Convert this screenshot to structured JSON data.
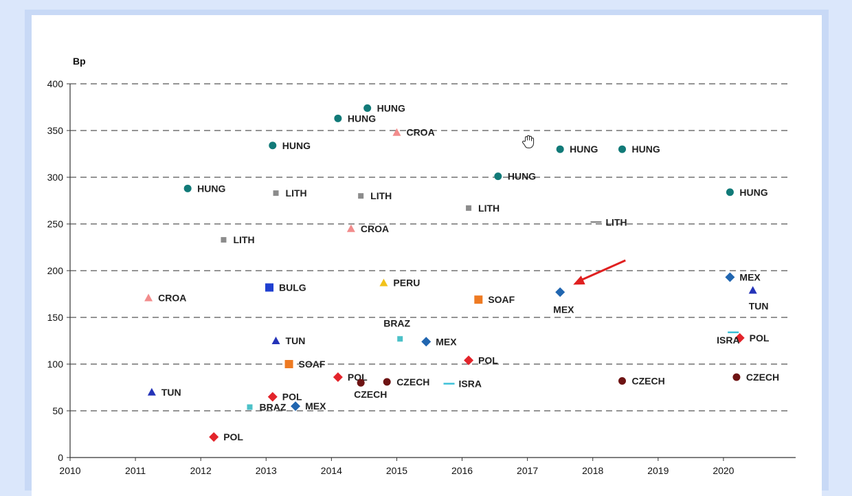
{
  "chart_data": {
    "type": "scatter",
    "ylabel": "Bp",
    "xlim": [
      2010,
      2021
    ],
    "ylim": [
      0,
      400
    ],
    "x_ticks": [
      "2010",
      "2011",
      "2012",
      "2013",
      "2014",
      "2015",
      "2016",
      "2017",
      "2018",
      "2019",
      "2020"
    ],
    "y_ticks": [
      "0",
      "50",
      "100",
      "150",
      "200",
      "250",
      "300",
      "350",
      "400"
    ],
    "grid": "horizontal-dashed",
    "colors": {
      "HUNG": "#117a78",
      "CROA": "#f28c8c",
      "LITH": "#8c8c8c",
      "BULG": "#1f3fd0",
      "PERU": "#f2c21a",
      "SOAF": "#ee7a22",
      "MEX": "#2166b0",
      "TUN": "#2433b8",
      "BRAZ": "#4cc1c8",
      "POL": "#e3242b",
      "CZECH": "#6e1414",
      "ISRA": "#3cc0d8",
      "arrow": "#e02020"
    },
    "points": [
      {
        "label": "HUNG",
        "marker": "circle",
        "x": 2011.8,
        "y": 288
      },
      {
        "label": "HUNG",
        "marker": "circle",
        "x": 2013.1,
        "y": 334
      },
      {
        "label": "HUNG",
        "marker": "circle",
        "x": 2014.1,
        "y": 363
      },
      {
        "label": "HUNG",
        "marker": "circle",
        "x": 2014.55,
        "y": 374
      },
      {
        "label": "HUNG",
        "marker": "circle",
        "x": 2016.55,
        "y": 301
      },
      {
        "label": "HUNG",
        "marker": "circle",
        "x": 2017.5,
        "y": 330
      },
      {
        "label": "HUNG",
        "marker": "circle",
        "x": 2018.45,
        "y": 330
      },
      {
        "label": "HUNG",
        "marker": "circle",
        "x": 2020.1,
        "y": 284
      },
      {
        "label": "CROA",
        "marker": "triangle",
        "x": 2011.2,
        "y": 171
      },
      {
        "label": "CROA",
        "marker": "triangle",
        "x": 2014.3,
        "y": 245
      },
      {
        "label": "CROA",
        "marker": "triangle",
        "x": 2015.0,
        "y": 348
      },
      {
        "label": "LITH",
        "marker": "square-small",
        "x": 2012.35,
        "y": 233
      },
      {
        "label": "LITH",
        "marker": "square-small",
        "x": 2013.15,
        "y": 283
      },
      {
        "label": "LITH",
        "marker": "square-small",
        "x": 2014.45,
        "y": 280
      },
      {
        "label": "LITH",
        "marker": "square-small",
        "x": 2016.1,
        "y": 267
      },
      {
        "label": "LITH",
        "marker": "dash",
        "x": 2018.05,
        "y": 252
      },
      {
        "label": "BULG",
        "marker": "square",
        "x": 2013.05,
        "y": 182
      },
      {
        "label": "PERU",
        "marker": "triangle",
        "x": 2014.8,
        "y": 187
      },
      {
        "label": "SOAF",
        "marker": "square",
        "x": 2016.25,
        "y": 169
      },
      {
        "label": "SOAF",
        "marker": "square",
        "x": 2013.35,
        "y": 100
      },
      {
        "label": "MEX",
        "marker": "diamond",
        "x": 2017.5,
        "y": 177
      },
      {
        "label": "MEX",
        "marker": "diamond",
        "x": 2020.1,
        "y": 193
      },
      {
        "label": "MEX",
        "marker": "diamond",
        "x": 2015.45,
        "y": 124
      },
      {
        "label": "MEX",
        "marker": "diamond",
        "x": 2013.45,
        "y": 55
      },
      {
        "label": "TUN",
        "marker": "triangle",
        "x": 2011.25,
        "y": 70
      },
      {
        "label": "TUN",
        "marker": "triangle",
        "x": 2013.15,
        "y": 125
      },
      {
        "label": "TUN",
        "marker": "triangle",
        "x": 2020.45,
        "y": 179
      },
      {
        "label": "BRAZ",
        "marker": "square-small",
        "x": 2015.05,
        "y": 127
      },
      {
        "label": "BRAZ",
        "marker": "square-small",
        "x": 2012.75,
        "y": 54
      },
      {
        "label": "POL",
        "marker": "diamond",
        "x": 2012.2,
        "y": 22
      },
      {
        "label": "POL",
        "marker": "diamond",
        "x": 2013.1,
        "y": 65
      },
      {
        "label": "POL",
        "marker": "diamond",
        "x": 2014.1,
        "y": 86
      },
      {
        "label": "POL",
        "marker": "diamond",
        "x": 2016.1,
        "y": 104
      },
      {
        "label": "POL",
        "marker": "diamond",
        "x": 2020.25,
        "y": 128
      },
      {
        "label": "CZECH",
        "marker": "circle",
        "x": 2014.45,
        "y": 80
      },
      {
        "label": "CZECH",
        "marker": "circle",
        "x": 2014.85,
        "y": 81
      },
      {
        "label": "CZECH",
        "marker": "circle",
        "x": 2018.45,
        "y": 82
      },
      {
        "label": "CZECH",
        "marker": "circle",
        "x": 2020.2,
        "y": 86
      },
      {
        "label": "ISRA",
        "marker": "dash",
        "x": 2015.8,
        "y": 79
      },
      {
        "label": "ISRA",
        "marker": "dash",
        "x": 2020.15,
        "y": 134
      }
    ],
    "annotation": {
      "type": "arrow",
      "from": [
        2018.5,
        211
      ],
      "to": [
        2017.7,
        185
      ]
    },
    "icon": "hand-cursor-icon"
  }
}
